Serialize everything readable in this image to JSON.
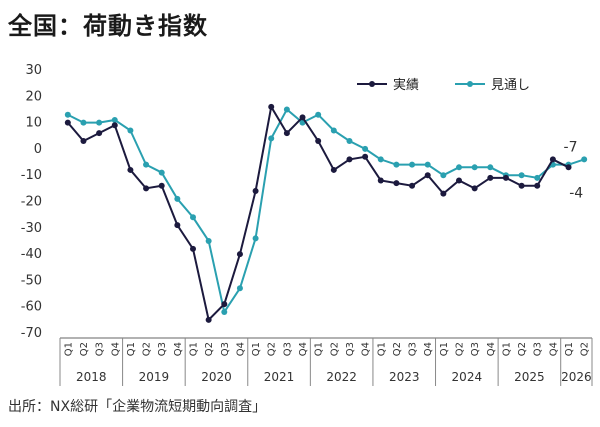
{
  "title": "全国：荷動き指数",
  "source": "出所：NX総研「企業物流短期動向調査」",
  "chart_data": {
    "type": "line",
    "title": "全国：荷動き指数",
    "ylim": [
      -70,
      30
    ],
    "yticks": [
      30,
      20,
      10,
      0,
      -10,
      -20,
      -30,
      -40,
      -50,
      -60,
      -70
    ],
    "grid": false,
    "legend_position": "top-right",
    "quarters": [
      "Q1",
      "Q2",
      "Q3",
      "Q4",
      "Q1",
      "Q2",
      "Q3",
      "Q4",
      "Q1",
      "Q2",
      "Q3",
      "Q4",
      "Q1",
      "Q2",
      "Q3",
      "Q4",
      "Q1",
      "Q2",
      "Q3",
      "Q4",
      "Q1",
      "Q2",
      "Q3",
      "Q4",
      "Q1",
      "Q2",
      "Q3",
      "Q4",
      "Q1",
      "Q2",
      "Q3",
      "Q4",
      "Q1",
      "Q2"
    ],
    "years": [
      {
        "label": "2018",
        "count": 4
      },
      {
        "label": "2019",
        "count": 4
      },
      {
        "label": "2020",
        "count": 4
      },
      {
        "label": "2021",
        "count": 4
      },
      {
        "label": "2022",
        "count": 4
      },
      {
        "label": "2023",
        "count": 4
      },
      {
        "label": "2024",
        "count": 4
      },
      {
        "label": "2025",
        "count": 4
      },
      {
        "label": "2026",
        "count": 2
      }
    ],
    "series": [
      {
        "name": "実績",
        "color": "#1c1a3e",
        "values": [
          10,
          3,
          6,
          9,
          -8,
          -15,
          -14,
          -29,
          -38,
          -65,
          -59,
          -40,
          -16,
          16,
          6,
          12,
          3,
          -8,
          -4,
          -3,
          -12,
          -13,
          -14,
          -10,
          -17,
          -12,
          -15,
          -11,
          -11,
          -14,
          -14,
          -4,
          -7,
          null
        ]
      },
      {
        "name": "見通し",
        "color": "#2aa0b0",
        "values": [
          13,
          10,
          10,
          11,
          7,
          -6,
          -9,
          -19,
          -26,
          -35,
          -62,
          -53,
          -34,
          4,
          15,
          10,
          13,
          7,
          3,
          0,
          -4,
          -6,
          -6,
          -6,
          -10,
          -7,
          -7,
          -7,
          -10,
          -10,
          -11,
          -6,
          -6,
          -4
        ]
      }
    ],
    "annotations": [
      {
        "text": "-7",
        "series": "実績"
      },
      {
        "text": "-4",
        "series": "見通し"
      }
    ]
  }
}
